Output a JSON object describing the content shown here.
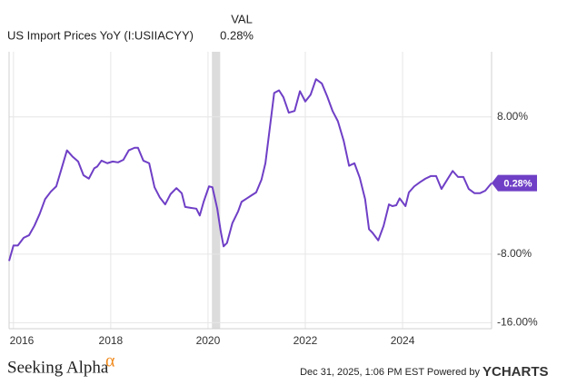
{
  "chart_data": {
    "type": "line",
    "title": "US Import Prices YoY (I:USIIACYY)",
    "column_header": "VAL",
    "header_value": "0.28%",
    "x": [
      2015.91,
      2016.0,
      2016.09,
      2016.21,
      2016.32,
      2016.43,
      2016.54,
      2016.65,
      2016.77,
      2016.88,
      2016.99,
      2017.1,
      2017.21,
      2017.33,
      2017.44,
      2017.55,
      2017.66,
      2017.72,
      2017.81,
      2017.93,
      2018.04,
      2018.15,
      2018.26,
      2018.37,
      2018.49,
      2018.56,
      2018.67,
      2018.79,
      2018.9,
      2019.01,
      2019.12,
      2019.23,
      2019.35,
      2019.46,
      2019.53,
      2019.64,
      2019.76,
      2019.83,
      2019.91,
      2020.02,
      2020.09,
      2020.19,
      2020.26,
      2020.32,
      2020.39,
      2020.5,
      2020.62,
      2020.69,
      2020.8,
      2020.88,
      2020.99,
      2021.1,
      2021.18,
      2021.29,
      2021.36,
      2021.46,
      2021.55,
      2021.66,
      2021.78,
      2021.89,
      2022.0,
      2022.11,
      2022.22,
      2022.34,
      2022.45,
      2022.56,
      2022.67,
      2022.79,
      2022.9,
      2023.01,
      2023.12,
      2023.23,
      2023.31,
      2023.38,
      2023.5,
      2023.61,
      2023.72,
      2023.79,
      2023.87,
      2023.94,
      2024.06,
      2024.13,
      2024.24,
      2024.36,
      2024.47,
      2024.58,
      2024.69,
      2024.8,
      2024.92,
      2025.03,
      2025.14,
      2025.25,
      2025.36,
      2025.48,
      2025.59,
      2025.7,
      2025.83
    ],
    "series": [
      {
        "name": "US Import Prices YoY (I:USIIACYY)",
        "color": "#6f3fc6",
        "values": [
          -8.8,
          -7.0,
          -7.0,
          -6.1,
          -5.8,
          -4.7,
          -3.3,
          -1.6,
          -0.7,
          -0.1,
          2.0,
          4.1,
          3.4,
          2.8,
          1.2,
          0.8,
          2.0,
          2.2,
          2.9,
          2.6,
          2.8,
          2.7,
          3.0,
          4.1,
          4.4,
          4.4,
          2.9,
          2.6,
          -0.2,
          -1.4,
          -2.2,
          -1.0,
          -0.3,
          -0.9,
          -2.5,
          -2.6,
          -2.7,
          -3.5,
          -1.9,
          -0.1,
          -0.2,
          -2.7,
          -5.3,
          -7.1,
          -6.7,
          -4.4,
          -3.0,
          -1.9,
          -1.5,
          -1.2,
          -0.8,
          0.7,
          2.6,
          7.6,
          10.8,
          11.1,
          10.3,
          8.5,
          8.7,
          11.0,
          9.8,
          10.6,
          12.4,
          11.9,
          10.4,
          8.7,
          7.5,
          5.2,
          2.3,
          2.6,
          0.9,
          -1.6,
          -5.1,
          -5.5,
          -6.4,
          -4.7,
          -2.2,
          -2.4,
          -2.3,
          -1.5,
          -2.4,
          -0.8,
          -0.1,
          0.4,
          0.8,
          1.1,
          1.1,
          -0.4,
          0.7,
          1.7,
          1.0,
          1.0,
          -0.4,
          -0.9,
          -0.9,
          -0.6,
          0.28
        ],
        "value_labels": [
          null,
          null,
          null,
          null,
          null,
          null,
          null,
          null,
          null,
          null,
          null,
          null,
          null,
          null,
          null,
          null,
          null,
          null,
          null,
          null,
          null,
          null,
          null,
          null,
          null,
          null,
          null,
          null,
          null,
          null,
          null,
          null,
          null,
          null,
          null,
          null,
          null,
          null,
          null,
          null,
          null,
          null,
          null,
          null,
          null,
          null,
          null,
          null,
          null,
          null,
          null,
          null,
          null,
          null,
          null,
          null,
          null,
          null,
          null,
          null,
          null,
          null,
          null,
          null,
          null,
          null,
          null,
          null,
          null,
          null,
          null,
          null,
          null,
          null,
          null,
          null,
          null,
          null,
          null,
          null,
          null,
          null,
          null,
          null,
          null,
          null,
          null,
          null,
          null,
          null,
          null,
          null,
          null,
          null,
          null,
          null,
          "0.28%"
        ]
      }
    ],
    "recession": [
      2020.08,
      2020.25
    ],
    "recession_color": "#dcdcdc",
    "xlim": [
      2015.91,
      2025.83
    ],
    "xticks": [
      2016,
      2018,
      2020,
      2022,
      2024
    ],
    "ylim": [
      -16.7,
      15.6
    ],
    "yticks": [
      {
        "value": 8,
        "label": "8.00%"
      },
      {
        "value": -8,
        "label": "-8.00%"
      },
      {
        "value": -16,
        "label": "-16.00%"
      }
    ],
    "grid": true,
    "footer": {
      "brand": "Seeking Alpha",
      "brand_mark": "α",
      "timestamp": "Dec 31, 2025, 1:06 PM EST Powered by",
      "provider": "YCHARTS"
    }
  }
}
